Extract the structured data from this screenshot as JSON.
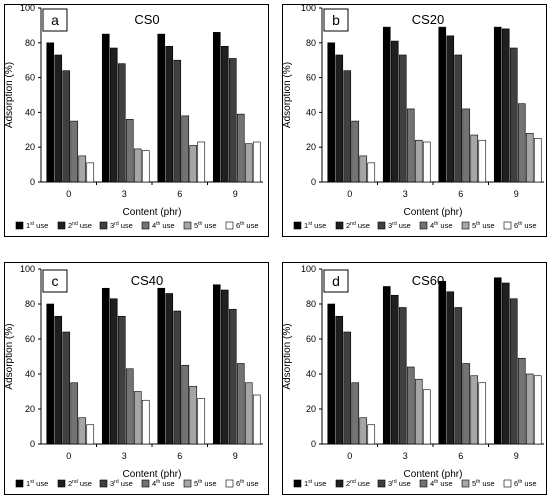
{
  "chart_data": [
    {
      "type": "bar",
      "panel_letter": "a",
      "title": "CS0",
      "xlabel": "Content (phr)",
      "ylabel": "Adsorption (%)",
      "ylim": [
        0,
        100
      ],
      "yticks": [
        "0",
        "20",
        "40",
        "60",
        "80",
        "100"
      ],
      "categories": [
        "0",
        "3",
        "6",
        "9"
      ],
      "grid": false,
      "legend_position": "bottom",
      "series": [
        {
          "name": "1st use",
          "values": [
            80,
            85,
            85,
            86
          ]
        },
        {
          "name": "2nd use",
          "values": [
            73,
            77,
            78,
            78
          ]
        },
        {
          "name": "3rd use",
          "values": [
            64,
            68,
            70,
            71
          ]
        },
        {
          "name": "4th use",
          "values": [
            35,
            36,
            38,
            39
          ]
        },
        {
          "name": "5th use",
          "values": [
            15,
            19,
            21,
            22
          ]
        },
        {
          "name": "6th use",
          "values": [
            11,
            18,
            23,
            23
          ]
        }
      ]
    },
    {
      "type": "bar",
      "panel_letter": "b",
      "title": "CS20",
      "xlabel": "Content (phr)",
      "ylabel": "Adsorption (%)",
      "ylim": [
        0,
        100
      ],
      "yticks": [
        "0",
        "20",
        "40",
        "60",
        "80",
        "100"
      ],
      "categories": [
        "0",
        "3",
        "6",
        "9"
      ],
      "grid": false,
      "legend_position": "bottom",
      "series": [
        {
          "name": "1st use",
          "values": [
            80,
            89,
            89,
            89
          ]
        },
        {
          "name": "2nd use",
          "values": [
            73,
            81,
            84,
            88
          ]
        },
        {
          "name": "3rd use",
          "values": [
            64,
            73,
            73,
            77
          ]
        },
        {
          "name": "4th use",
          "values": [
            35,
            42,
            42,
            45
          ]
        },
        {
          "name": "5th use",
          "values": [
            15,
            24,
            27,
            28
          ]
        },
        {
          "name": "6th use",
          "values": [
            11,
            23,
            24,
            25
          ]
        }
      ]
    },
    {
      "type": "bar",
      "panel_letter": "c",
      "title": "CS40",
      "xlabel": "Content (phr)",
      "ylabel": "Adsorption (%)",
      "ylim": [
        0,
        100
      ],
      "yticks": [
        "0",
        "20",
        "40",
        "60",
        "80",
        "100"
      ],
      "categories": [
        "0",
        "3",
        "6",
        "9"
      ],
      "grid": false,
      "legend_position": "bottom",
      "series": [
        {
          "name": "1st use",
          "values": [
            80,
            89,
            89,
            91
          ]
        },
        {
          "name": "2nd use",
          "values": [
            73,
            83,
            86,
            88
          ]
        },
        {
          "name": "3rd use",
          "values": [
            64,
            73,
            76,
            77
          ]
        },
        {
          "name": "4th use",
          "values": [
            35,
            43,
            45,
            46
          ]
        },
        {
          "name": "5th use",
          "values": [
            15,
            30,
            33,
            35
          ]
        },
        {
          "name": "6th use",
          "values": [
            11,
            25,
            26,
            28
          ]
        }
      ]
    },
    {
      "type": "bar",
      "panel_letter": "d",
      "title": "CS60",
      "xlabel": "Content (phr)",
      "ylabel": "Adsorption (%)",
      "ylim": [
        0,
        100
      ],
      "yticks": [
        "0",
        "20",
        "40",
        "60",
        "80",
        "100"
      ],
      "categories": [
        "0",
        "3",
        "6",
        "9"
      ],
      "grid": false,
      "legend_position": "bottom",
      "series": [
        {
          "name": "1st use",
          "values": [
            80,
            90,
            93,
            95
          ]
        },
        {
          "name": "2nd use",
          "values": [
            73,
            85,
            87,
            92
          ]
        },
        {
          "name": "3rd use",
          "values": [
            64,
            78,
            78,
            83
          ]
        },
        {
          "name": "4th use",
          "values": [
            35,
            44,
            46,
            49
          ]
        },
        {
          "name": "5th use",
          "values": [
            15,
            37,
            39,
            40
          ]
        },
        {
          "name": "6th use",
          "values": [
            11,
            31,
            35,
            39
          ]
        }
      ]
    }
  ],
  "legend": {
    "entries": [
      {
        "prefix": "1",
        "sup": "st",
        "suffix": " use",
        "color": "#000000"
      },
      {
        "prefix": "2",
        "sup": "nd",
        "suffix": " use",
        "color": "#1f1f1f"
      },
      {
        "prefix": "3",
        "sup": "rd",
        "suffix": " use",
        "color": "#404040"
      },
      {
        "prefix": "4",
        "sup": "th",
        "suffix": " use",
        "color": "#737373"
      },
      {
        "prefix": "5",
        "sup": "th",
        "suffix": " use",
        "color": "#a6a6a6"
      },
      {
        "prefix": "6",
        "sup": "th",
        "suffix": " use",
        "color": "#ffffff"
      }
    ]
  },
  "colors": {
    "series": [
      "#000000",
      "#1f1f1f",
      "#404040",
      "#737373",
      "#a6a6a6",
      "#ffffff"
    ],
    "axis": "#000000",
    "frame": "#000000",
    "background": "#ffffff"
  }
}
